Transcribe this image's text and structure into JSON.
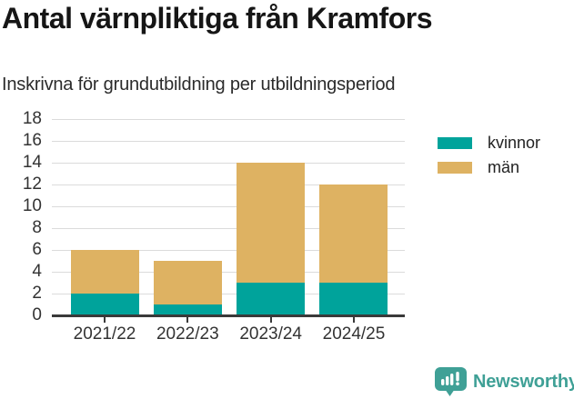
{
  "chart_data": {
    "type": "bar",
    "stacked": true,
    "title": "Antal värnpliktiga från Kramfors",
    "subtitle": "Inskrivna för grundutbildning per utbildningsperiod",
    "categories": [
      "2021/22",
      "2022/23",
      "2023/24",
      "2024/25"
    ],
    "series": [
      {
        "name": "kvinnor",
        "color": "#00A39B",
        "values": [
          2,
          1,
          3,
          3
        ]
      },
      {
        "name": "män",
        "color": "#DEB262",
        "values": [
          4,
          4,
          11,
          9
        ]
      }
    ],
    "totals": [
      6,
      5,
      14,
      12
    ],
    "xlabel": "",
    "ylabel": "",
    "ylim": [
      0,
      18
    ],
    "yticks": [
      0,
      2,
      4,
      6,
      8,
      10,
      12,
      14,
      16,
      18
    ],
    "grid": true,
    "legend_position": "top-right"
  },
  "colors": {
    "background": "#FFFFFF",
    "grid": "#DBDBDB",
    "axis": "#3A3A3A",
    "tick_label": "#333333",
    "title_text": "#161616",
    "subtitle_text": "#2B2B2B",
    "legend_text": "#222222"
  },
  "branding": {
    "name": "Newsworthy",
    "icon": "bar-chart-speech-bubble-icon",
    "color": "#3FA096"
  }
}
